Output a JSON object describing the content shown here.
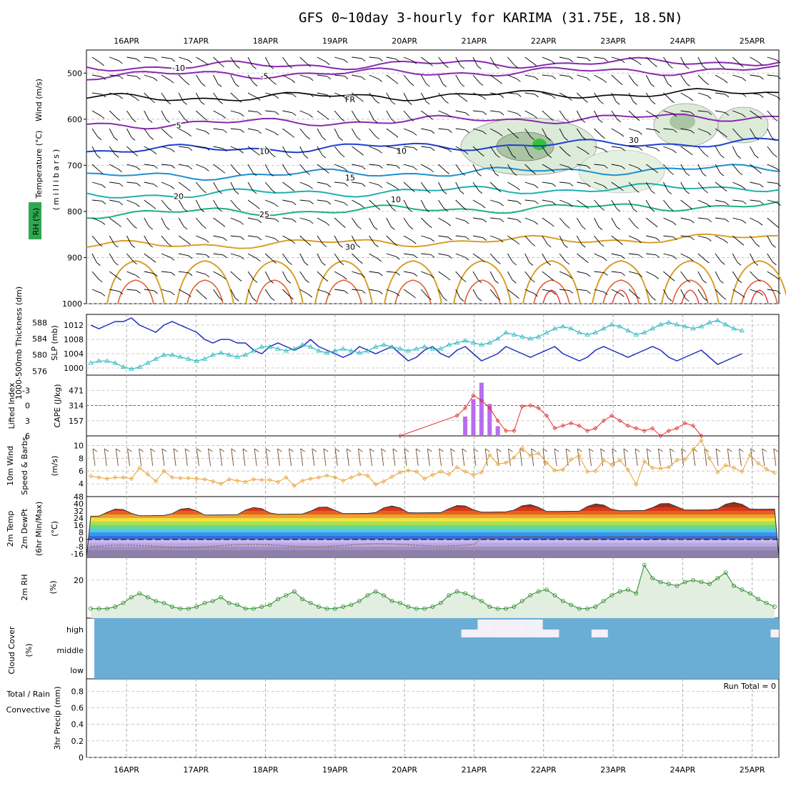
{
  "title": "GFS 0~10day 3-hourly for KARIMA (31.75E, 18.5N)",
  "colors": {
    "rh_green": "#2fa84f",
    "temp_orange": "#d8a02a",
    "temp_red": "#e03030",
    "wind_blue": "#1f3fd0",
    "cape_purple": "#b86cf0",
    "thickness_cyan": "#30b8c0",
    "slp_blue": "#2030c0",
    "cloud_blue": "#6aaed6",
    "cloud_white": "#f4f0f8",
    "freezing_black": "#000000"
  },
  "chart_data": [
    {
      "id": "upper_air",
      "type": "heatmap",
      "ylabel_parts": [
        "Wind (m/s)",
        "Temperature (°C)",
        "RH (%)"
      ],
      "ylabel_units": "(millibars)",
      "x": [
        "16APR",
        "17APR",
        "18APR",
        "19APR",
        "20APR",
        "21APR",
        "22APR",
        "23APR",
        "24APR",
        "25APR"
      ],
      "yticks": [
        500,
        600,
        700,
        800,
        900,
        1000
      ],
      "ylim": [
        1000,
        450
      ],
      "isotherms": [
        {
          "label": "-10",
          "level": 487,
          "color": "#8a2ab0"
        },
        {
          "label": "-5",
          "level": 505,
          "color": "#8a2ab0"
        },
        {
          "label": "FR",
          "level": 555,
          "color": "#000000"
        },
        {
          "label": "5",
          "level": 612,
          "color": "#8a2ab0"
        },
        {
          "label": "10",
          "level": 668,
          "color": "#1f3fd0"
        },
        {
          "label": "15",
          "level": 725,
          "color": "#1e90d0"
        },
        {
          "label": "20",
          "level": 765,
          "color": "#20b0b0"
        },
        {
          "label": "25",
          "level": 805,
          "color": "#20b080"
        },
        {
          "label": "30",
          "level": 875,
          "color": "#d8a02a"
        }
      ],
      "rh_labels": [
        "10",
        "10",
        "30"
      ]
    },
    {
      "id": "slp_thickness",
      "type": "line",
      "ylabel_left": "1000-500mb Thickness (dm)",
      "ylabel_right": "SLP (mb)",
      "yticks_thickness": [
        576,
        580,
        584,
        588
      ],
      "yticks_slp": [
        1000,
        1004,
        1008,
        1012
      ],
      "series": [
        {
          "name": "SLP",
          "values": [
            1012,
            1011,
            1012,
            1013,
            1013,
            1014,
            1012,
            1011,
            1010,
            1012,
            1013,
            1012,
            1011,
            1010,
            1008,
            1007,
            1008,
            1008,
            1007,
            1007,
            1005,
            1004,
            1006,
            1007,
            1006,
            1005,
            1006,
            1008,
            1006,
            1005,
            1004,
            1003,
            1004,
            1006,
            1005,
            1004,
            1005,
            1006,
            1004,
            1002,
            1003,
            1005,
            1006,
            1004,
            1003,
            1005,
            1006,
            1004,
            1002,
            1003,
            1004,
            1006,
            1005,
            1004,
            1003,
            1004,
            1005,
            1006,
            1004,
            1003,
            1002,
            1003,
            1005,
            1006,
            1005,
            1004,
            1003,
            1004,
            1005,
            1006,
            1005,
            1003,
            1002,
            1003,
            1004,
            1005,
            1003,
            1001,
            1002,
            1003,
            1004
          ]
        },
        {
          "name": "Thickness",
          "values": [
            578,
            578.5,
            578.5,
            578,
            577,
            576.5,
            577,
            578,
            579,
            580,
            580,
            579.5,
            579,
            578.5,
            579,
            580,
            580.5,
            580,
            579.5,
            580,
            581,
            582,
            582,
            581.5,
            581,
            581.5,
            582.5,
            582,
            581,
            580.5,
            581,
            581.5,
            581,
            580.5,
            581,
            582,
            582.5,
            582,
            581.5,
            581,
            581.5,
            582,
            581.5,
            581.5,
            582.5,
            583,
            583.5,
            583,
            582.5,
            583,
            584,
            585.5,
            585,
            584.5,
            584,
            584.5,
            585.5,
            586.5,
            587,
            586.5,
            585.5,
            585,
            585.5,
            586.5,
            587.5,
            587,
            586,
            585,
            585.5,
            586.5,
            587.5,
            588,
            587.5,
            587,
            586.5,
            587,
            588,
            588.5,
            587.5,
            586.5,
            586
          ]
        }
      ]
    },
    {
      "id": "lifted_cape",
      "type": "bar",
      "ylabel_left": "Lifted Index",
      "ylabel_right": "CAPE (J/kg)",
      "yticks_li": [
        -3,
        0,
        3,
        6
      ],
      "yticks_cape": [
        157,
        314,
        471
      ],
      "cape_bars": [
        {
          "x": 46,
          "value": 200
        },
        {
          "x": 47,
          "value": 380
        },
        {
          "x": 48,
          "value": 550
        },
        {
          "x": 49,
          "value": 330
        },
        {
          "x": 50,
          "value": 100
        },
        {
          "x": 54,
          "value": 10
        }
      ],
      "li_points": [
        {
          "x": 38,
          "value": 6
        },
        {
          "x": 45,
          "value": 2
        },
        {
          "x": 46,
          "value": 0.5
        },
        {
          "x": 47,
          "value": -2
        },
        {
          "x": 48,
          "value": -1
        },
        {
          "x": 49,
          "value": 0.5
        },
        {
          "x": 50,
          "value": 3
        },
        {
          "x": 51,
          "value": 5
        },
        {
          "x": 52,
          "value": 5
        },
        {
          "x": 53,
          "value": 0.2
        },
        {
          "x": 54,
          "value": 0
        },
        {
          "x": 55,
          "value": 0.5
        },
        {
          "x": 56,
          "value": 2
        },
        {
          "x": 57,
          "value": 4.5
        },
        {
          "x": 58,
          "value": 4
        },
        {
          "x": 59,
          "value": 3.5
        },
        {
          "x": 60,
          "value": 4
        },
        {
          "x": 61,
          "value": 5
        },
        {
          "x": 62,
          "value": 4.5
        },
        {
          "x": 63,
          "value": 3
        },
        {
          "x": 64,
          "value": 2
        },
        {
          "x": 65,
          "value": 3
        },
        {
          "x": 66,
          "value": 4
        },
        {
          "x": 67,
          "value": 4.5
        },
        {
          "x": 68,
          "value": 5
        },
        {
          "x": 69,
          "value": 4.5
        },
        {
          "x": 70,
          "value": 6
        },
        {
          "x": 71,
          "value": 5
        },
        {
          "x": 72,
          "value": 4.5
        },
        {
          "x": 73,
          "value": 3.5
        },
        {
          "x": 74,
          "value": 4
        },
        {
          "x": 75,
          "value": 6
        }
      ]
    },
    {
      "id": "wind10m",
      "type": "line",
      "ylabel": "10m Wind Speed & Barbs",
      "ylabel_units": "(m/s)",
      "yticks": [
        4,
        6,
        8,
        10
      ],
      "values": [
        5.2,
        5,
        4.8,
        5,
        5,
        4.8,
        6.5,
        5.5,
        4.4,
        6,
        5,
        4.9,
        4.9,
        4.8,
        4.7,
        4.4,
        4,
        4.7,
        4.5,
        4.3,
        4.7,
        4.6,
        4.6,
        4.3,
        5,
        3.7,
        4.5,
        4.8,
        5,
        5.3,
        5,
        4.5,
        5,
        5.5,
        5.3,
        3.9,
        4.4,
        5.1,
        5.8,
        6.1,
        5.9,
        4.8,
        5.4,
        5.9,
        5.5,
        6.6,
        5.9,
        5.4,
        5.8,
        8.5,
        7.1,
        7.3,
        8.1,
        9.6,
        8.4,
        8.8,
        7.3,
        6.1,
        6.2,
        7.8,
        8.4,
        5.9,
        6,
        7.7,
        7,
        7.7,
        6.2,
        3.9,
        7.5,
        6.5,
        6.4,
        6.6,
        7.7,
        7.8,
        9.4,
        10.8,
        8,
        5.8,
        6.9,
        6.5,
        5.9,
        8.5,
        7.2,
        6.3,
        5.7
      ]
    },
    {
      "id": "temp2m",
      "type": "area",
      "ylabel": "2m Temp 2m DewPt (6hr Min/Max)",
      "ylabel_units": "(°C)",
      "yticks": [
        -16,
        -8,
        0,
        8,
        16,
        24,
        32,
        40,
        48
      ],
      "ylim": [
        -20,
        48
      ],
      "temp_min": [
        26,
        26,
        25,
        24,
        22,
        21,
        20,
        22,
        24
      ],
      "temp_max": [
        34,
        35,
        38,
        40,
        41,
        42,
        43,
        44,
        45
      ]
    },
    {
      "id": "rh2m",
      "type": "area",
      "ylabel": "2m RH",
      "ylabel_units": "(%)",
      "yticks": [
        20
      ],
      "values": [
        5,
        5,
        5,
        6,
        8,
        11,
        13,
        11,
        9,
        8,
        6,
        5,
        5,
        6,
        8,
        9,
        11,
        8,
        7,
        5,
        5,
        6,
        7,
        10,
        12,
        14,
        10,
        8,
        6,
        5,
        5,
        6,
        7,
        9,
        12,
        14,
        12,
        9,
        8,
        6,
        5,
        5,
        6,
        8,
        12,
        14,
        13,
        11,
        9,
        6,
        5,
        5,
        6,
        9,
        12,
        14,
        15,
        12,
        9,
        7,
        5,
        5,
        6,
        9,
        12,
        14,
        15,
        13,
        28,
        21,
        19,
        18,
        17,
        19,
        20,
        19,
        18,
        21,
        24,
        17,
        15,
        13,
        10,
        8,
        6
      ]
    },
    {
      "id": "cloud",
      "type": "heatmap",
      "ylabel": "Cloud Cover",
      "ylabel_units": "(%)",
      "ylevels": [
        "high",
        "middle",
        "low"
      ],
      "high_cloud_steps": [
        46,
        47,
        48,
        49,
        50,
        51,
        52,
        53,
        54,
        55,
        56,
        57,
        62,
        63,
        84
      ]
    },
    {
      "id": "precip",
      "type": "bar",
      "ylabel_left": "Total / Rain",
      "ylabel_left2": "Convective",
      "ylabel": "3hr Precip (mm)",
      "yticks": [
        0,
        0.2,
        0.4,
        0.6,
        0.8
      ],
      "run_total": "Run Total = 0",
      "values": []
    }
  ]
}
